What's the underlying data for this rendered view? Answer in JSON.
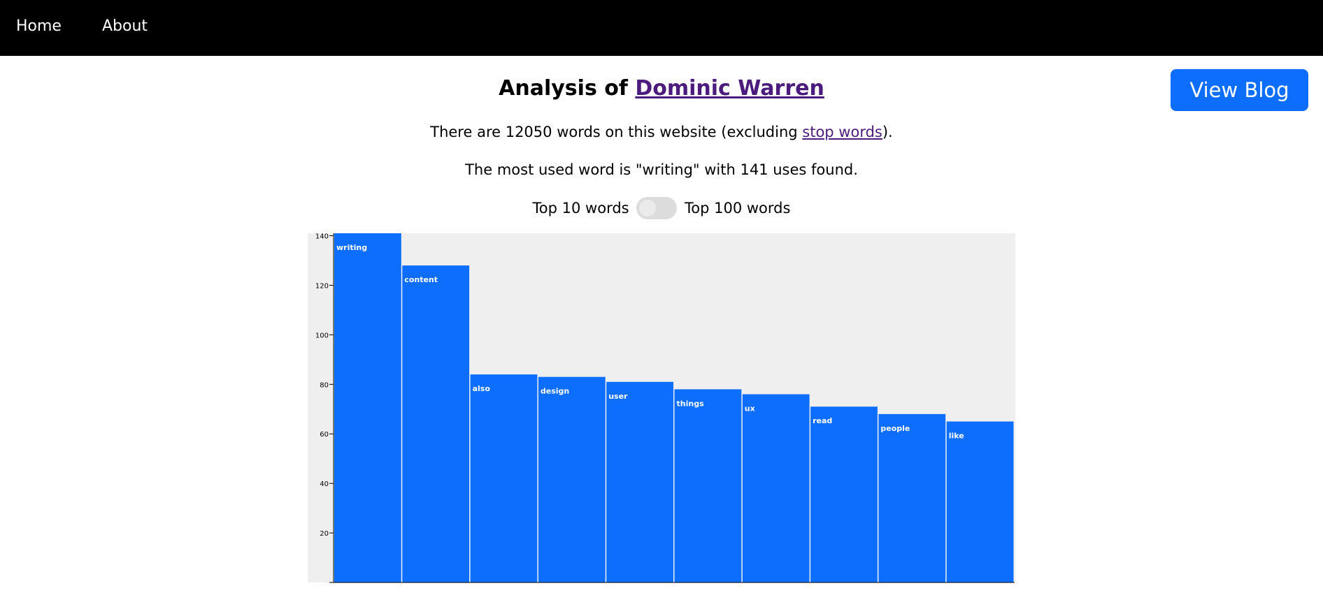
{
  "nav": {
    "home": "Home",
    "about": "About"
  },
  "view_blog_label": "View Blog",
  "title": {
    "prefix": "Analysis of ",
    "name": "Dominic Warren"
  },
  "summary": {
    "words_prefix": "There are 12050 words on this website (excluding ",
    "stop_words_link": "stop words",
    "words_suffix": ").",
    "most_used": "The most used word is \"writing\" with 141 uses found."
  },
  "toggle": {
    "left_label": "Top 10 words",
    "right_label": "Top 100 words"
  },
  "colors": {
    "bar": "#0d6efd",
    "plot_bg": "#efefef",
    "navbar": "#000000",
    "link": "#4b1c7d"
  },
  "chart_data": {
    "type": "bar",
    "categories": [
      "writing",
      "content",
      "also",
      "design",
      "user",
      "things",
      "ux",
      "read",
      "people",
      "like"
    ],
    "values": [
      141,
      128,
      84,
      83,
      81,
      78,
      76,
      71,
      68,
      65
    ],
    "yticks": [
      20,
      40,
      60,
      80,
      100,
      120,
      140
    ],
    "ylim": [
      0,
      141
    ],
    "grid": false
  }
}
